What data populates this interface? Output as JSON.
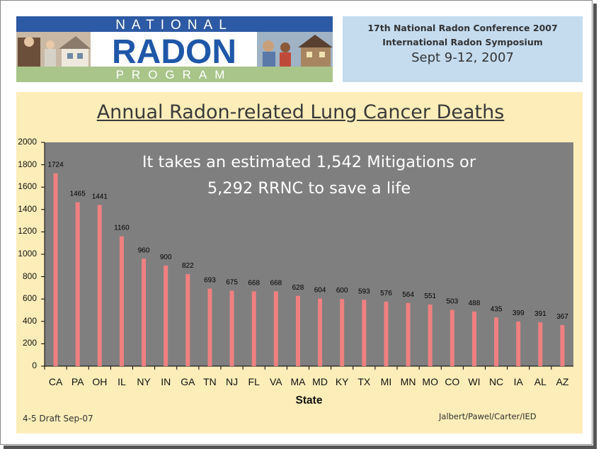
{
  "logo": {
    "line1": "NATIONAL",
    "line2": "RADON",
    "line3": "PROGRAM"
  },
  "conference": {
    "line1": "17th National Radon Conference 2007",
    "line2": "International Radon Symposium",
    "line3": "Sept 9-12, 2007"
  },
  "note": {
    "line1": "It takes an estimated 1,542 Mitigations or",
    "line2": "5,292 RRNC to save a life"
  },
  "footer": {
    "left": "4-5 Draft Sep-07",
    "right": "Jalbert/Pawel/Carter/IED"
  },
  "colors": {
    "bar": "#f08080",
    "plot_bg": "#7f7f7f",
    "panel_bg": "#fdedb9",
    "conf_bg": "#c5dcef",
    "logo_blue": "#1f57a8",
    "logo_green": "#a9c58a"
  },
  "chart_data": {
    "type": "bar",
    "title": "Annual Radon-related Lung Cancer Deaths",
    "xlabel": "State",
    "ylabel": "",
    "ylim": [
      0,
      2000
    ],
    "yticks": [
      0,
      200,
      400,
      600,
      800,
      1000,
      1200,
      1400,
      1600,
      1800,
      2000
    ],
    "categories": [
      "CA",
      "PA",
      "OH",
      "IL",
      "NY",
      "IN",
      "GA",
      "TN",
      "NJ",
      "FL",
      "VA",
      "MA",
      "MD",
      "KY",
      "TX",
      "MI",
      "MN",
      "MO",
      "CO",
      "WI",
      "NC",
      "IA",
      "AL",
      "AZ"
    ],
    "values": [
      1724,
      1465,
      1441,
      1160,
      960,
      900,
      822,
      693,
      675,
      668,
      668,
      628,
      604,
      600,
      593,
      576,
      564,
      551,
      503,
      488,
      435,
      399,
      391,
      367
    ],
    "grid": false,
    "legend": "none"
  }
}
